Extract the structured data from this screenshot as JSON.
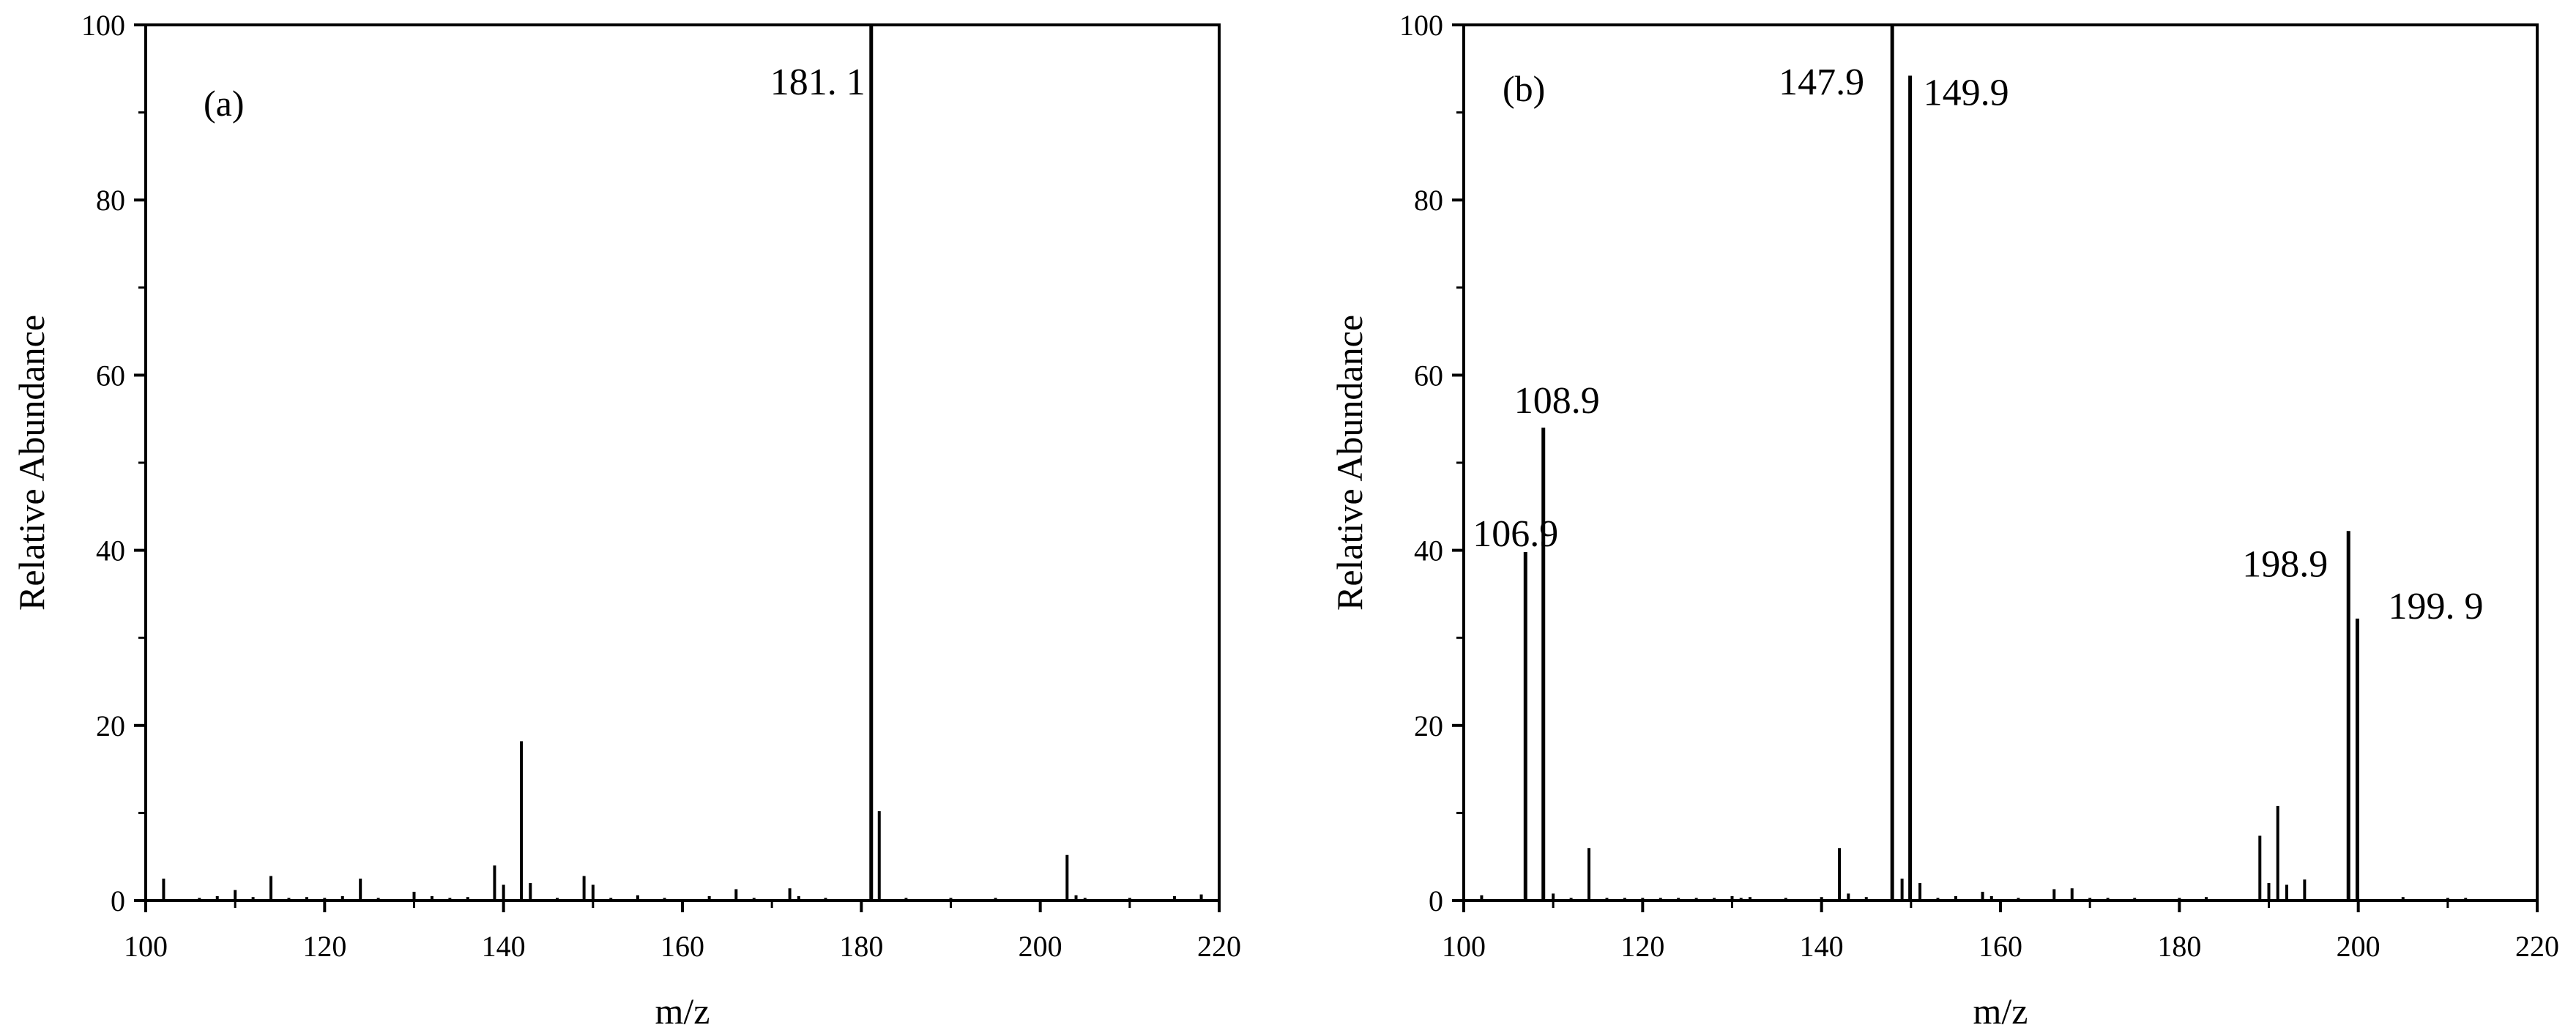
{
  "colors": {
    "ink": "#000000",
    "background": "#ffffff"
  },
  "chart_data": [
    {
      "type": "bar",
      "panel_label": "(a)",
      "xlabel": "m/z",
      "ylabel": "Relative Abundance",
      "xlim": [
        100,
        220
      ],
      "ylim": [
        0,
        100
      ],
      "xticks": [
        100,
        120,
        140,
        160,
        180,
        200,
        220
      ],
      "yticks": [
        0,
        20,
        40,
        60,
        80,
        100
      ],
      "grid": false,
      "peaks": [
        {
          "x": 102,
          "y": 2.5
        },
        {
          "x": 106,
          "y": 0.3
        },
        {
          "x": 108,
          "y": 0.5
        },
        {
          "x": 110,
          "y": 1.2
        },
        {
          "x": 112,
          "y": 0.4
        },
        {
          "x": 114,
          "y": 2.8
        },
        {
          "x": 116,
          "y": 0.3
        },
        {
          "x": 118,
          "y": 0.4
        },
        {
          "x": 120,
          "y": 0.3
        },
        {
          "x": 122,
          "y": 0.5
        },
        {
          "x": 124,
          "y": 2.5
        },
        {
          "x": 126,
          "y": 0.3
        },
        {
          "x": 130,
          "y": 1.0
        },
        {
          "x": 132,
          "y": 0.5
        },
        {
          "x": 134,
          "y": 0.3
        },
        {
          "x": 136,
          "y": 0.4
        },
        {
          "x": 139,
          "y": 4.0
        },
        {
          "x": 140,
          "y": 1.8
        },
        {
          "x": 142,
          "y": 18.2
        },
        {
          "x": 143,
          "y": 2.0
        },
        {
          "x": 146,
          "y": 0.3
        },
        {
          "x": 149,
          "y": 2.8
        },
        {
          "x": 150,
          "y": 1.8
        },
        {
          "x": 152,
          "y": 0.3
        },
        {
          "x": 155,
          "y": 0.6
        },
        {
          "x": 158,
          "y": 0.3
        },
        {
          "x": 163,
          "y": 0.5
        },
        {
          "x": 166,
          "y": 1.3
        },
        {
          "x": 168,
          "y": 0.3
        },
        {
          "x": 172,
          "y": 1.4
        },
        {
          "x": 173,
          "y": 0.5
        },
        {
          "x": 176,
          "y": 0.3
        },
        {
          "x": 181.1,
          "y": 100
        },
        {
          "x": 182,
          "y": 10.2
        },
        {
          "x": 185,
          "y": 0.3
        },
        {
          "x": 190,
          "y": 0.3
        },
        {
          "x": 195,
          "y": 0.3
        },
        {
          "x": 203,
          "y": 5.2
        },
        {
          "x": 204,
          "y": 0.6
        },
        {
          "x": 205,
          "y": 0.3
        },
        {
          "x": 210,
          "y": 0.3
        },
        {
          "x": 215,
          "y": 0.5
        },
        {
          "x": 218,
          "y": 0.7
        }
      ],
      "annotations": [
        {
          "text": "181. 1",
          "x": 181.1,
          "y": 100,
          "anchor": "end",
          "dx": -8,
          "dy": 95
        }
      ]
    },
    {
      "type": "bar",
      "panel_label": "(b)",
      "xlabel": "m/z",
      "ylabel": "Relative Abundance",
      "xlim": [
        100,
        220
      ],
      "ylim": [
        0,
        100
      ],
      "xticks": [
        100,
        120,
        140,
        160,
        180,
        200,
        220
      ],
      "yticks": [
        0,
        20,
        40,
        60,
        80,
        100
      ],
      "grid": false,
      "peaks": [
        {
          "x": 102,
          "y": 0.6
        },
        {
          "x": 106.9,
          "y": 39.8
        },
        {
          "x": 108.9,
          "y": 54.0
        },
        {
          "x": 110,
          "y": 0.8
        },
        {
          "x": 112,
          "y": 0.3
        },
        {
          "x": 114,
          "y": 6.0
        },
        {
          "x": 116,
          "y": 0.3
        },
        {
          "x": 118,
          "y": 0.3
        },
        {
          "x": 120,
          "y": 0.3
        },
        {
          "x": 122,
          "y": 0.3
        },
        {
          "x": 124,
          "y": 0.3
        },
        {
          "x": 126,
          "y": 0.3
        },
        {
          "x": 128,
          "y": 0.3
        },
        {
          "x": 130,
          "y": 0.5
        },
        {
          "x": 131,
          "y": 0.3
        },
        {
          "x": 132,
          "y": 0.4
        },
        {
          "x": 136,
          "y": 0.3
        },
        {
          "x": 140,
          "y": 0.4
        },
        {
          "x": 142,
          "y": 6.0
        },
        {
          "x": 143,
          "y": 0.8
        },
        {
          "x": 145,
          "y": 0.4
        },
        {
          "x": 147.9,
          "y": 100
        },
        {
          "x": 149,
          "y": 2.5
        },
        {
          "x": 149.9,
          "y": 94.2
        },
        {
          "x": 151,
          "y": 2.0
        },
        {
          "x": 153,
          "y": 0.3
        },
        {
          "x": 155,
          "y": 0.5
        },
        {
          "x": 158,
          "y": 1.0
        },
        {
          "x": 159,
          "y": 0.5
        },
        {
          "x": 162,
          "y": 0.3
        },
        {
          "x": 166,
          "y": 1.3
        },
        {
          "x": 168,
          "y": 1.4
        },
        {
          "x": 170,
          "y": 0.3
        },
        {
          "x": 172,
          "y": 0.3
        },
        {
          "x": 175,
          "y": 0.3
        },
        {
          "x": 180,
          "y": 0.3
        },
        {
          "x": 183,
          "y": 0.4
        },
        {
          "x": 189,
          "y": 7.4
        },
        {
          "x": 190,
          "y": 2.0
        },
        {
          "x": 191,
          "y": 10.8
        },
        {
          "x": 192,
          "y": 1.8
        },
        {
          "x": 194,
          "y": 2.4
        },
        {
          "x": 198.9,
          "y": 42.2
        },
        {
          "x": 199.9,
          "y": 32.2
        },
        {
          "x": 205,
          "y": 0.4
        },
        {
          "x": 210,
          "y": 0.3
        },
        {
          "x": 212,
          "y": 0.3
        }
      ],
      "annotations": [
        {
          "text": "106.9",
          "x": 106.9,
          "y": 39.8,
          "anchor": "start",
          "dx": -72,
          "dy": -8
        },
        {
          "text": "108.9",
          "x": 108.9,
          "y": 54.0,
          "anchor": "start",
          "dx": -40,
          "dy": -20
        },
        {
          "text": "147.9",
          "x": 147.9,
          "y": 100,
          "anchor": "end",
          "dx": -38,
          "dy": 95
        },
        {
          "text": "149.9",
          "x": 149.9,
          "y": 94.2,
          "anchor": "start",
          "dx": 18,
          "dy": 40
        },
        {
          "text": "198.9",
          "x": 198.9,
          "y": 42.2,
          "anchor": "end",
          "dx": -28,
          "dy": 62
        },
        {
          "text": "199. 9",
          "x": 199.9,
          "y": 32.2,
          "anchor": "start",
          "dx": 42,
          "dy": 0
        }
      ]
    }
  ]
}
